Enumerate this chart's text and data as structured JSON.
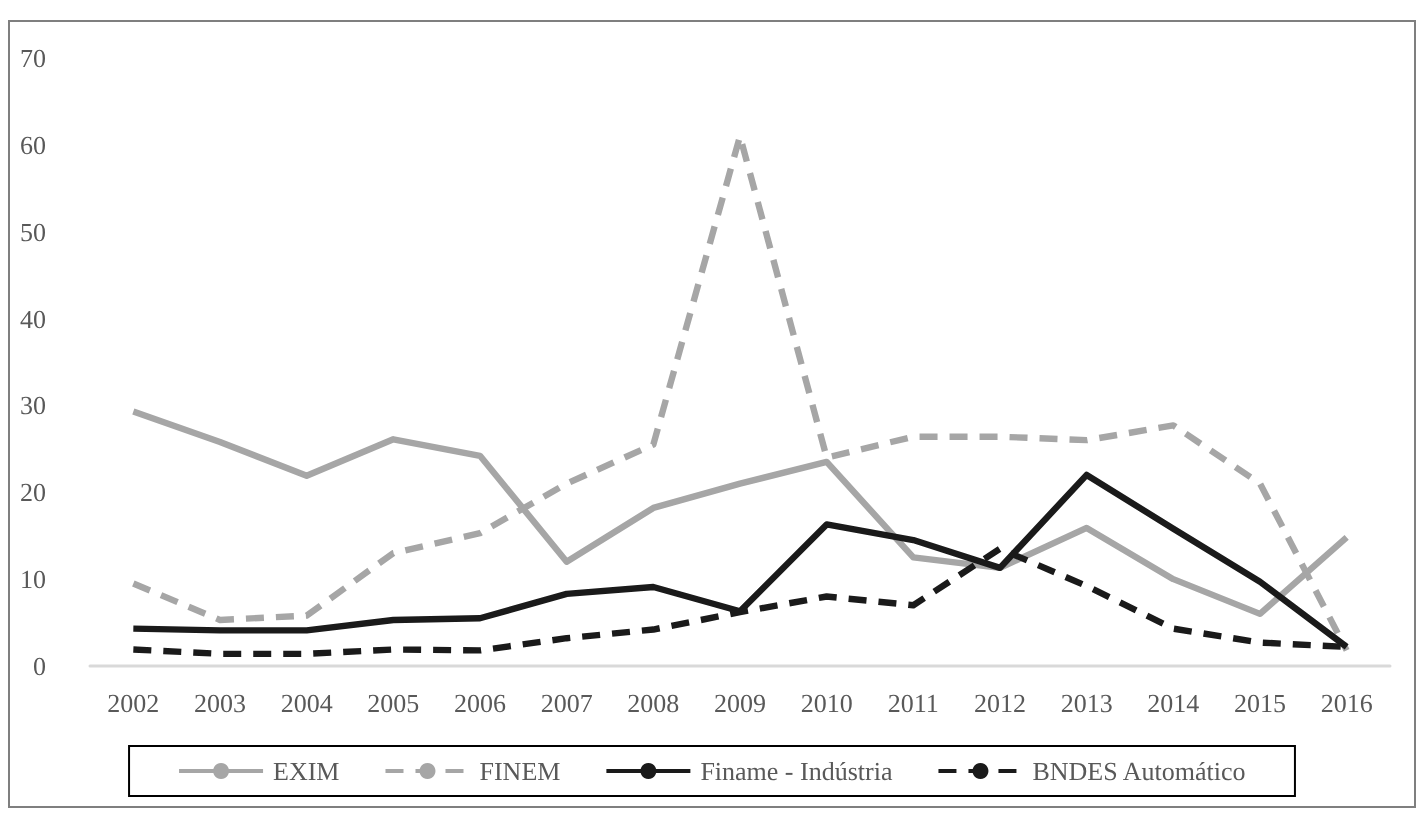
{
  "chart_data": {
    "type": "line",
    "categories": [
      "2002",
      "2003",
      "2004",
      "2005",
      "2006",
      "2007",
      "2008",
      "2009",
      "2010",
      "2011",
      "2012",
      "2013",
      "2014",
      "2015",
      "2016"
    ],
    "series": [
      {
        "name": "EXIM",
        "color": "#a6a6a6",
        "line_style": "solid",
        "values": [
          29.3,
          25.8,
          21.9,
          26.1,
          24.2,
          12,
          18.2,
          21,
          23.5,
          12.5,
          11.3,
          15.9,
          10,
          6,
          14.8
        ]
      },
      {
        "name": "FINEM",
        "color": "#a6a6a6",
        "line_style": "dashed",
        "values": [
          9.5,
          5.3,
          5.8,
          13,
          15.3,
          21,
          25.5,
          61,
          24,
          26.4,
          26.4,
          26,
          27.7,
          21,
          1.8
        ]
      },
      {
        "name": "Finame - Indústria",
        "color": "#1a1a1a",
        "line_style": "solid",
        "values": [
          4.3,
          4.1,
          4.1,
          5.3,
          5.5,
          8.3,
          9.1,
          6.3,
          16.3,
          14.5,
          11.3,
          22,
          15.8,
          9.7,
          2.2
        ]
      },
      {
        "name": "BNDES Automático",
        "color": "#1a1a1a",
        "line_style": "dashed",
        "values": [
          1.9,
          1.4,
          1.4,
          1.9,
          1.8,
          3.2,
          4.2,
          6.2,
          8,
          7,
          13.5,
          9.2,
          4.3,
          2.7,
          2.2
        ]
      }
    ],
    "ylim": [
      0,
      70
    ],
    "yticks": [
      0,
      10,
      20,
      30,
      40,
      50,
      60,
      70
    ],
    "grid": false,
    "legend": "bottom",
    "marker": "none"
  }
}
